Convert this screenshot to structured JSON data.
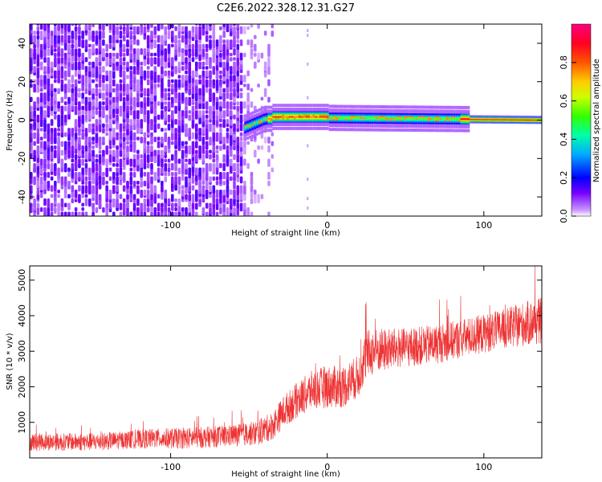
{
  "chart_data": [
    {
      "type": "heatmap",
      "title": "C2E6.2022.328.12.31.G27",
      "xlabel": "Height of straight line (km)",
      "ylabel": "Frequency (Hz)",
      "xlim": [
        -190,
        137
      ],
      "ylim": [
        -50,
        50
      ],
      "xticks": [
        -100,
        0,
        100
      ],
      "yticks": [
        -40,
        -20,
        0,
        20,
        40
      ],
      "colorbar": {
        "label": "Normalized spectral amplitude",
        "range": [
          0,
          1
        ],
        "ticks": [
          "0.0",
          "0.2",
          "0.4",
          "0.6",
          "0.8"
        ],
        "colormap": [
          "#ffffff",
          "#6600ff",
          "#0000ff",
          "#00c8ff",
          "#00ff80",
          "#80ff00",
          "#ffff00",
          "#ff8000",
          "#ff0000",
          "#ff0080"
        ]
      },
      "description_points": {
        "noise_region_x": [
          -190,
          -35
        ],
        "signal_start_x": -53,
        "signal_frequency_hz": 0,
        "signal_x": [
          -53,
          137
        ]
      }
    },
    {
      "type": "line",
      "xlabel": "Height of straight line (km)",
      "ylabel": "SNR (10 * v/v)",
      "xlim": [
        -190,
        137
      ],
      "ylim": [
        0,
        5400
      ],
      "xticks": [
        -100,
        0,
        100
      ],
      "yticks": [
        1000,
        2000,
        3000,
        4000,
        5000
      ],
      "series": [
        {
          "color": "#ee3333",
          "x": [
            -190,
            -170,
            -150,
            -130,
            -110,
            -90,
            -70,
            -55,
            -45,
            -35,
            -28,
            -20,
            -10,
            0,
            10,
            20,
            25,
            30,
            40,
            50,
            60,
            70,
            80,
            90,
            100,
            110,
            120,
            130,
            137
          ],
          "y": [
            450,
            450,
            450,
            500,
            550,
            550,
            600,
            650,
            700,
            900,
            1300,
            1600,
            1900,
            2000,
            2000,
            2300,
            2900,
            3000,
            3050,
            3100,
            3150,
            3200,
            3300,
            3400,
            3500,
            3600,
            3700,
            3800,
            3850
          ],
          "spread": [
            250,
            250,
            250,
            250,
            280,
            300,
            300,
            320,
            350,
            400,
            450,
            500,
            550,
            600,
            600,
            600,
            700,
            650,
            600,
            550,
            550,
            550,
            550,
            550,
            550,
            550,
            600,
            650,
            650
          ]
        }
      ]
    }
  ]
}
